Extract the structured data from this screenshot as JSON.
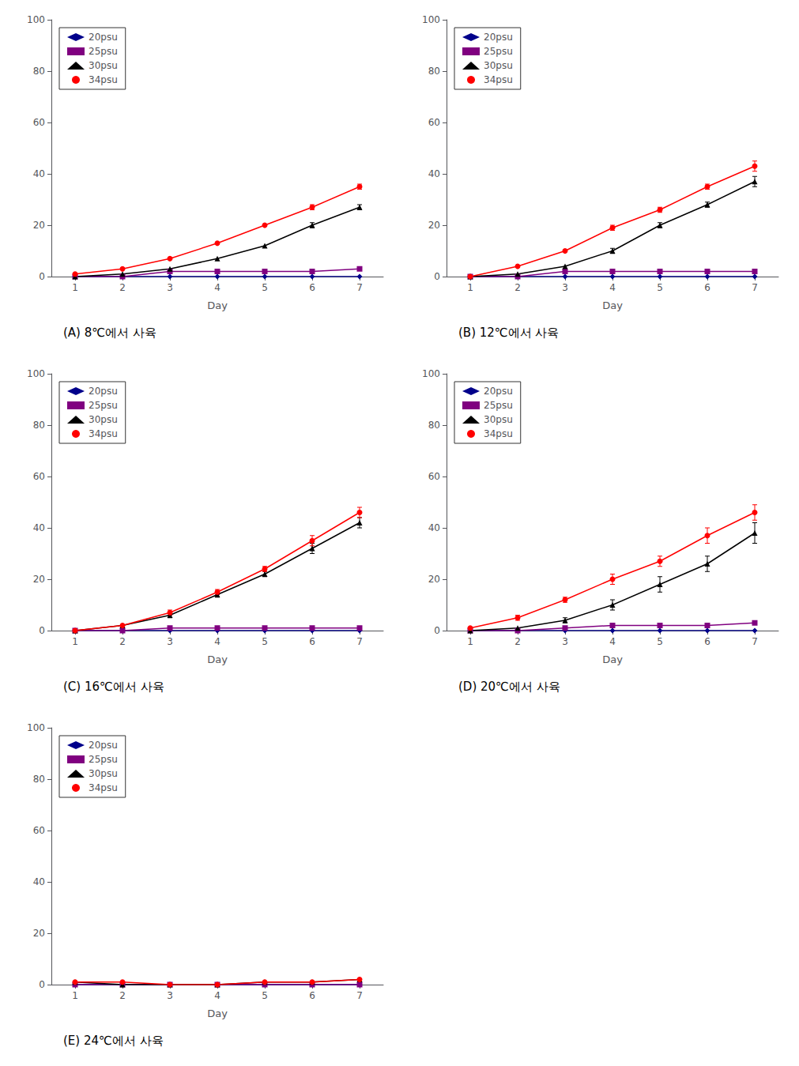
{
  "chart_data": [
    {
      "type": "line",
      "title": "(A) 8℃에서 사육",
      "xlabel": "Day",
      "x": [
        1,
        2,
        3,
        4,
        5,
        6,
        7
      ],
      "xlim": [
        0.5,
        7.5
      ],
      "xticks": [
        1,
        2,
        3,
        4,
        5,
        6,
        7
      ],
      "ylim": [
        0,
        100
      ],
      "yticks": [
        0,
        20,
        40,
        60,
        80,
        100
      ],
      "grid": false,
      "legend": "upper left",
      "series": [
        {
          "name": "20psu",
          "color": "#00008B",
          "marker": "diamond",
          "values": [
            0,
            0,
            0,
            0,
            0,
            0,
            0
          ]
        },
        {
          "name": "25psu",
          "color": "#800080",
          "marker": "square",
          "values": [
            0,
            0,
            2,
            2,
            2,
            2,
            3
          ]
        },
        {
          "name": "30psu",
          "color": "#000000",
          "marker": "triangle",
          "values": [
            0,
            1,
            3,
            7,
            12,
            20,
            27
          ],
          "errors": [
            0,
            0,
            0,
            0,
            0,
            1,
            1
          ]
        },
        {
          "name": "34psu",
          "color": "#FF0000",
          "marker": "circle",
          "values": [
            1,
            3,
            7,
            13,
            20,
            27,
            35
          ],
          "errors": [
            0,
            0,
            0,
            0,
            0,
            1,
            1
          ]
        }
      ]
    },
    {
      "type": "line",
      "title": "(B) 12℃에서 사육",
      "xlabel": "Day",
      "x": [
        1,
        2,
        3,
        4,
        5,
        6,
        7
      ],
      "xlim": [
        0.5,
        7.5
      ],
      "xticks": [
        1,
        2,
        3,
        4,
        5,
        6,
        7
      ],
      "ylim": [
        0,
        100
      ],
      "yticks": [
        0,
        20,
        40,
        60,
        80,
        100
      ],
      "grid": false,
      "legend": "upper left",
      "series": [
        {
          "name": "20psu",
          "color": "#00008B",
          "marker": "diamond",
          "values": [
            0,
            0,
            0,
            0,
            0,
            0,
            0
          ]
        },
        {
          "name": "25psu",
          "color": "#800080",
          "marker": "square",
          "values": [
            0,
            0,
            2,
            2,
            2,
            2,
            2
          ]
        },
        {
          "name": "30psu",
          "color": "#000000",
          "marker": "triangle",
          "values": [
            0,
            1,
            4,
            10,
            20,
            28,
            37
          ],
          "errors": [
            0,
            0,
            0,
            1,
            1,
            1,
            2
          ]
        },
        {
          "name": "34psu",
          "color": "#FF0000",
          "marker": "circle",
          "values": [
            0,
            4,
            10,
            19,
            26,
            35,
            43
          ],
          "errors": [
            0,
            0,
            0,
            1,
            1,
            1,
            2
          ]
        }
      ]
    },
    {
      "type": "line",
      "title": "(C) 16℃에서 사육",
      "xlabel": "Day",
      "x": [
        1,
        2,
        3,
        4,
        5,
        6,
        7
      ],
      "xlim": [
        0.5,
        7.5
      ],
      "xticks": [
        1,
        2,
        3,
        4,
        5,
        6,
        7
      ],
      "ylim": [
        0,
        100
      ],
      "yticks": [
        0,
        20,
        40,
        60,
        80,
        100
      ],
      "grid": false,
      "legend": "upper left",
      "series": [
        {
          "name": "20psu",
          "color": "#00008B",
          "marker": "diamond",
          "values": [
            0,
            0,
            0,
            0,
            0,
            0,
            0
          ]
        },
        {
          "name": "25psu",
          "color": "#800080",
          "marker": "square",
          "values": [
            0,
            0,
            1,
            1,
            1,
            1,
            1
          ]
        },
        {
          "name": "30psu",
          "color": "#000000",
          "marker": "triangle",
          "values": [
            0,
            2,
            6,
            14,
            22,
            32,
            42
          ],
          "errors": [
            0,
            0,
            1,
            1,
            1,
            2,
            2
          ]
        },
        {
          "name": "34psu",
          "color": "#FF0000",
          "marker": "circle",
          "values": [
            0,
            2,
            7,
            15,
            24,
            35,
            46
          ],
          "errors": [
            0,
            0,
            1,
            1,
            1,
            2,
            2
          ]
        }
      ]
    },
    {
      "type": "line",
      "title": "(D) 20℃에서 사육",
      "xlabel": "Day",
      "x": [
        1,
        2,
        3,
        4,
        5,
        6,
        7
      ],
      "xlim": [
        0.5,
        7.5
      ],
      "xticks": [
        1,
        2,
        3,
        4,
        5,
        6,
        7
      ],
      "ylim": [
        0,
        100
      ],
      "yticks": [
        0,
        20,
        40,
        60,
        80,
        100
      ],
      "grid": false,
      "legend": "upper left",
      "series": [
        {
          "name": "20psu",
          "color": "#00008B",
          "marker": "diamond",
          "values": [
            0,
            0,
            0,
            0,
            0,
            0,
            0
          ]
        },
        {
          "name": "25psu",
          "color": "#800080",
          "marker": "square",
          "values": [
            0,
            0,
            1,
            2,
            2,
            2,
            3
          ]
        },
        {
          "name": "30psu",
          "color": "#000000",
          "marker": "triangle",
          "values": [
            0,
            1,
            4,
            10,
            18,
            26,
            38
          ],
          "errors": [
            0,
            0,
            1,
            2,
            3,
            3,
            4
          ]
        },
        {
          "name": "34psu",
          "color": "#FF0000",
          "marker": "circle",
          "values": [
            1,
            5,
            12,
            20,
            27,
            37,
            46
          ],
          "errors": [
            0,
            1,
            1,
            2,
            2,
            3,
            3
          ]
        }
      ]
    },
    {
      "type": "line",
      "title": "(E) 24℃에서 사육",
      "xlabel": "Day",
      "x": [
        1,
        2,
        3,
        4,
        5,
        6,
        7
      ],
      "xlim": [
        0.5,
        7.5
      ],
      "xticks": [
        1,
        2,
        3,
        4,
        5,
        6,
        7
      ],
      "ylim": [
        0,
        100
      ],
      "yticks": [
        0,
        20,
        40,
        60,
        80,
        100
      ],
      "grid": false,
      "legend": "upper left",
      "series": [
        {
          "name": "20psu",
          "color": "#00008B",
          "marker": "diamond",
          "values": [
            0,
            0,
            0,
            0,
            0,
            0,
            0
          ]
        },
        {
          "name": "25psu",
          "color": "#800080",
          "marker": "square",
          "values": [
            0,
            0,
            0,
            0,
            0,
            0,
            0
          ]
        },
        {
          "name": "30psu",
          "color": "#000000",
          "marker": "triangle",
          "values": [
            1,
            0,
            0,
            0,
            1,
            1,
            2
          ]
        },
        {
          "name": "34psu",
          "color": "#FF0000",
          "marker": "circle",
          "values": [
            1,
            1,
            0,
            0,
            1,
            1,
            2
          ]
        }
      ]
    }
  ]
}
